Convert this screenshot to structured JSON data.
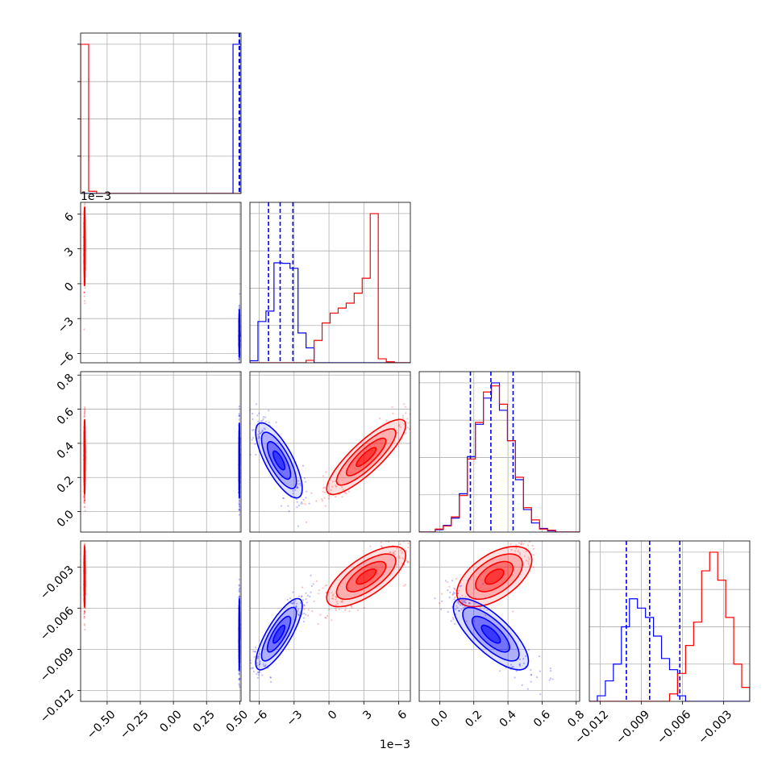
{
  "chart_data": {
    "type": "scatter",
    "kind": "corner plot",
    "colors": {
      "red": "#ff0000",
      "blue": "#0000ff",
      "grid": "#b0b0b0"
    },
    "grid": true,
    "parameters": [
      {
        "range": [
          -0.7,
          0.51
        ],
        "ticks": [
          "−0.50",
          "−0.25",
          "0.00",
          "0.25",
          "0.50"
        ],
        "tick_values": [
          -0.5,
          -0.25,
          0.0,
          0.25,
          0.5
        ],
        "offset_text": ""
      },
      {
        "range": [
          -6.8,
          7.0
        ],
        "ticks": [
          "−6",
          "−3",
          "0",
          "3",
          "6"
        ],
        "tick_values": [
          -6,
          -3,
          0,
          3,
          6
        ],
        "offset_text": "1e−3"
      },
      {
        "range": [
          -0.12,
          0.82
        ],
        "ticks": [
          "0.0",
          "0.2",
          "0.4",
          "0.6",
          "0.8"
        ],
        "tick_values": [
          0.0,
          0.2,
          0.4,
          0.6,
          0.8
        ],
        "offset_text": ""
      },
      {
        "range": [
          -0.0128,
          -0.0011
        ],
        "ticks": [
          "−0.012",
          "−0.009",
          "−0.006",
          "−0.003"
        ],
        "tick_values": [
          -0.012,
          -0.009,
          -0.006,
          -0.003
        ],
        "offset_text": ""
      }
    ],
    "series": [
      {
        "color": "red",
        "mean": [
          -0.67,
          3.2,
          0.32,
          -0.0037
        ],
        "sd": [
          0.002,
          1.7,
          0.11,
          0.0011
        ],
        "corr": [
          [
            0,
            0,
            0,
            0
          ],
          [
            0,
            0,
            0.85,
            0.7
          ],
          [
            0,
            0.85,
            0,
            0.55
          ],
          [
            0,
            0.7,
            0.55,
            0
          ]
        ]
      },
      {
        "color": "blue",
        "mean": [
          0.497,
          -4.3,
          0.3,
          -0.0079
        ],
        "sd": [
          0.0015,
          1.0,
          0.11,
          0.0013
        ],
        "corr": [
          [
            0,
            0,
            0,
            0
          ],
          [
            0,
            0,
            -0.75,
            0.8
          ],
          [
            0,
            -0.75,
            0,
            -0.75
          ],
          [
            0,
            0.8,
            -0.75,
            0
          ]
        ]
      }
    ],
    "histograms": [
      {
        "bins": [
          -0.7,
          0.51
        ],
        "red": [
          20,
          0.3,
          0,
          0,
          0,
          0,
          0,
          0,
          0,
          0,
          0,
          0,
          0,
          0,
          0,
          0,
          0,
          0,
          0,
          0
        ],
        "blue": [
          0,
          0,
          0,
          0,
          0,
          0,
          0,
          0,
          0,
          0,
          0,
          0,
          0,
          0,
          0,
          0,
          0,
          0,
          0,
          20
        ]
      },
      {
        "bins": [
          -6.8,
          7.0
        ],
        "red": [
          0,
          0,
          0,
          0,
          0,
          0,
          0,
          0.5,
          4.5,
          8,
          10,
          11,
          12,
          14,
          17,
          30,
          0.8,
          0.2,
          0,
          0
        ],
        "blue": [
          0.4,
          8.3,
          10.4,
          20.1,
          20,
          19,
          6,
          3,
          0,
          0,
          0,
          0,
          0,
          0,
          0,
          0,
          0,
          0,
          0,
          0
        ]
      },
      {
        "bins": [
          -0.12,
          0.82
        ],
        "red": [
          0,
          0,
          0.5,
          1,
          2.5,
          6,
          12,
          18,
          23,
          24,
          21,
          15,
          9,
          4,
          2,
          0.5,
          0.3,
          0,
          0,
          0
        ],
        "blue": [
          0,
          0,
          0.4,
          1.1,
          2.3,
          6.3,
          12.4,
          17.7,
          22,
          24.5,
          20,
          15,
          8.6,
          3.7,
          1.5,
          0.6,
          0.2,
          0,
          0,
          0
        ]
      },
      {
        "bins": [
          -0.0128,
          -0.0011
        ],
        "red": [
          0,
          0,
          0,
          0,
          0,
          0,
          0,
          0,
          0,
          0,
          0.8,
          3,
          6,
          8.5,
          14,
          16,
          13,
          9,
          4,
          1.5
        ],
        "blue": [
          0,
          0.6,
          2.2,
          4,
          8,
          11,
          10,
          9,
          7,
          4.6,
          3.4,
          0.6,
          0,
          0,
          0,
          0,
          0,
          0,
          0,
          0
        ]
      }
    ],
    "quantiles": {
      "color": "blue",
      "values": [
        [
          0.496,
          0.498,
          0.4995
        ],
        [
          -5.2,
          -4.2,
          -3.1
        ],
        [
          0.18,
          0.3,
          0.43
        ],
        [
          -0.0101,
          -0.0084,
          -0.0062
        ]
      ]
    }
  }
}
